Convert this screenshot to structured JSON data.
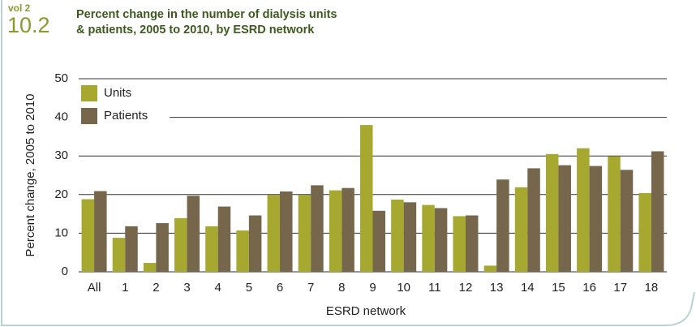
{
  "chart_data": {
    "type": "bar",
    "volume": "vol 2",
    "figure": "10.2",
    "title": [
      "Percent change in the number of dialysis units",
      "& patients, 2005 to 2010, by ESRD network"
    ],
    "x_label": "ESRD network",
    "y_label": "Percent change, 2005 to 2010",
    "categories": [
      "All",
      "1",
      "2",
      "3",
      "4",
      "5",
      "6",
      "7",
      "8",
      "9",
      "10",
      "11",
      "12",
      "13",
      "14",
      "15",
      "16",
      "17",
      "18"
    ],
    "series": [
      {
        "name": "Units",
        "color": "#a6a830",
        "values": [
          18.8,
          8.8,
          2.3,
          13.9,
          11.8,
          10.7,
          19.9,
          19.9,
          21.1,
          38.0,
          18.7,
          17.3,
          14.4,
          1.6,
          21.9,
          30.5,
          32.0,
          29.9,
          20.4
        ]
      },
      {
        "name": "Patients",
        "color": "#75664c",
        "values": [
          20.9,
          11.8,
          12.6,
          19.7,
          16.9,
          14.6,
          20.8,
          22.4,
          21.7,
          15.8,
          18.0,
          16.5,
          14.6,
          23.9,
          26.8,
          27.6,
          27.4,
          26.4,
          31.2
        ]
      }
    ],
    "ylim": [
      0,
      50
    ],
    "yticks": [
      0,
      10,
      20,
      30,
      40,
      50
    ],
    "grid": true,
    "legend": "upper left"
  }
}
